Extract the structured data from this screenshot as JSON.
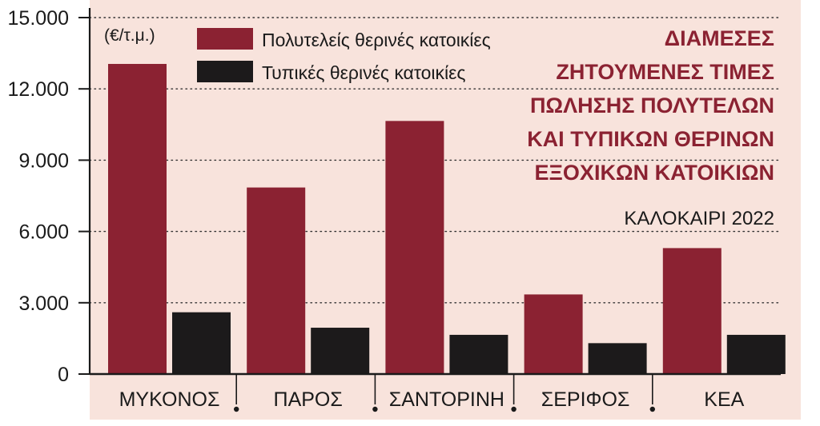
{
  "chart_data": {
    "type": "bar",
    "title_lines": [
      "ΔΙΑΜΕΣΕΣ",
      "ΖΗΤΟΥΜΕΝΕΣ ΤΙΜΕΣ",
      "ΠΩΛΗΣΗΣ ΠΟΛΥΤΕΛΩΝ",
      "ΚΑΙ ΤΥΠΙΚΩΝ ΘΕΡΙΝΩΝ",
      "ΕΞΟΧΙΚΩΝ ΚΑΤΟΙΚΙΩΝ"
    ],
    "subtitle": "ΚΑΛΟΚΑΙΡΙ 2022",
    "unit_label": "(€/τ.μ.)",
    "categories": [
      "ΜΥΚΟΝΟΣ",
      "ΠΑΡΟΣ",
      "ΣΑΝΤΟΡΙΝΗ",
      "ΣΕΡΙΦΟΣ",
      "ΚΕΑ"
    ],
    "series": [
      {
        "name": "Πολυτελείς θερινές κατοικίες",
        "color": "#8b2232",
        "values": [
          13050,
          7850,
          10650,
          3350,
          5300
        ]
      },
      {
        "name": "Τυπικές θερινές κατοικίες",
        "color": "#1c1a1b",
        "values": [
          2600,
          1950,
          1650,
          1300,
          1650
        ]
      }
    ],
    "y_ticks": [
      "0",
      "3.000",
      "6.000",
      "9.000",
      "12.000",
      "15.000"
    ],
    "ylim": [
      0,
      15000
    ],
    "grid": true,
    "legend_position": "top",
    "background_color": "#f8e3dc",
    "title_color": "#8b2232"
  }
}
